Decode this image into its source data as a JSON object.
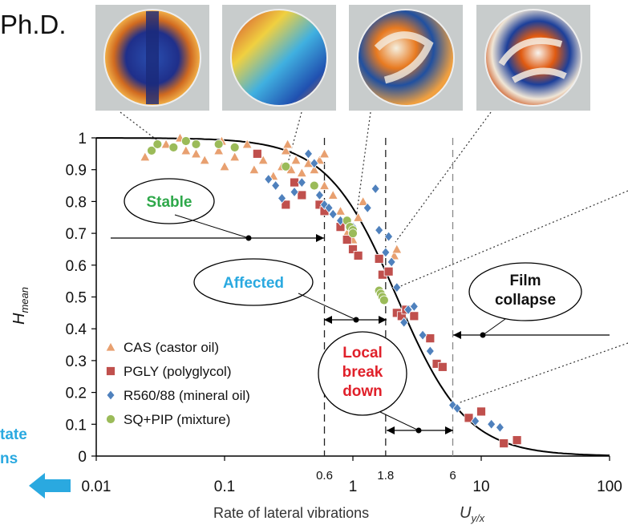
{
  "header_text": "Ph.D.",
  "chart_data": {
    "type": "scatter",
    "x_scale": "log",
    "xlim": [
      0.01,
      100
    ],
    "ylim": [
      0,
      1
    ],
    "grid": false,
    "x_ticks": [
      "0.01",
      "0.1",
      "1",
      "10",
      "100"
    ],
    "x_minor_ticks": [
      "0.6",
      "1.8",
      "6"
    ],
    "y_ticks": [
      "0",
      "0.1",
      "0.2",
      "0.3",
      "0.4",
      "0.5",
      "0.6",
      "0.7",
      "0.8",
      "0.9",
      "1"
    ],
    "xlabel": "Rate of lateral vibrations",
    "xlabel_symbol": "U",
    "xlabel_sub": "y/x",
    "ylabel": "H",
    "ylabel_sub": "mean",
    "thresholds": [
      0.6,
      1.8,
      6
    ],
    "legend_position": "bottom-left",
    "series": [
      {
        "name": "CAS (castor oil)",
        "marker": "triangle",
        "color": "#e8a070",
        "points": [
          [
            0.024,
            0.94
          ],
          [
            0.035,
            0.98
          ],
          [
            0.045,
            1.0
          ],
          [
            0.05,
            0.96
          ],
          [
            0.06,
            0.95
          ],
          [
            0.07,
            0.93
          ],
          [
            0.09,
            0.96
          ],
          [
            0.095,
            0.99
          ],
          [
            0.1,
            0.91
          ],
          [
            0.12,
            0.94
          ],
          [
            0.15,
            0.98
          ],
          [
            0.17,
            0.9
          ],
          [
            0.2,
            0.93
          ],
          [
            0.24,
            0.88
          ],
          [
            0.28,
            0.91
          ],
          [
            0.3,
            0.96
          ],
          [
            0.31,
            0.98
          ],
          [
            0.33,
            0.9
          ],
          [
            0.36,
            0.93
          ],
          [
            0.4,
            0.89
          ],
          [
            0.45,
            0.92
          ],
          [
            0.5,
            0.9
          ],
          [
            0.55,
            0.93
          ],
          [
            0.6,
            0.95
          ],
          [
            0.6,
            0.85
          ],
          [
            0.7,
            0.82
          ],
          [
            0.8,
            0.77
          ],
          [
            0.9,
            0.7
          ],
          [
            1.0,
            0.68
          ],
          [
            1.1,
            0.75
          ],
          [
            1.2,
            0.8
          ],
          [
            2.1,
            0.63
          ],
          [
            2.2,
            0.65
          ]
        ]
      },
      {
        "name": "PGLY (polyglycol)",
        "marker": "square",
        "color": "#c0504d",
        "points": [
          [
            0.18,
            0.95
          ],
          [
            0.3,
            0.79
          ],
          [
            0.35,
            0.86
          ],
          [
            0.4,
            0.82
          ],
          [
            0.55,
            0.79
          ],
          [
            0.6,
            0.77
          ],
          [
            0.8,
            0.72
          ],
          [
            0.9,
            0.68
          ],
          [
            1.0,
            0.65
          ],
          [
            1.1,
            0.63
          ],
          [
            1.6,
            0.62
          ],
          [
            1.7,
            0.57
          ],
          [
            1.9,
            0.58
          ],
          [
            2.2,
            0.45
          ],
          [
            2.4,
            0.44
          ],
          [
            2.6,
            0.46
          ],
          [
            3.0,
            0.44
          ],
          [
            4.0,
            0.37
          ],
          [
            4.5,
            0.29
          ],
          [
            5.0,
            0.28
          ],
          [
            8.0,
            0.12
          ],
          [
            10.0,
            0.14
          ],
          [
            15.0,
            0.04
          ],
          [
            19.0,
            0.05
          ]
        ]
      },
      {
        "name": "R560/88 (mineral oil)",
        "marker": "diamond",
        "color": "#4f81bd",
        "points": [
          [
            0.22,
            0.87
          ],
          [
            0.25,
            0.85
          ],
          [
            0.28,
            0.81
          ],
          [
            0.35,
            0.83
          ],
          [
            0.4,
            0.86
          ],
          [
            0.45,
            0.95
          ],
          [
            0.5,
            0.92
          ],
          [
            0.55,
            0.82
          ],
          [
            0.6,
            0.79
          ],
          [
            0.65,
            0.78
          ],
          [
            0.7,
            0.76
          ],
          [
            0.8,
            0.74
          ],
          [
            1.0,
            0.72
          ],
          [
            1.3,
            0.78
          ],
          [
            1.5,
            0.84
          ],
          [
            1.6,
            0.71
          ],
          [
            1.8,
            0.64
          ],
          [
            1.9,
            0.69
          ],
          [
            2.0,
            0.61
          ],
          [
            2.2,
            0.53
          ],
          [
            2.5,
            0.42
          ],
          [
            2.7,
            0.46
          ],
          [
            3.0,
            0.47
          ],
          [
            3.5,
            0.38
          ],
          [
            4.0,
            0.33
          ],
          [
            6.0,
            0.16
          ],
          [
            6.5,
            0.15
          ],
          [
            9.0,
            0.11
          ],
          [
            12.0,
            0.1
          ],
          [
            14.0,
            0.09
          ]
        ]
      },
      {
        "name": "SQ+PIP (mixture)",
        "marker": "circle",
        "color": "#9bbb59",
        "points": [
          [
            0.027,
            0.96
          ],
          [
            0.03,
            0.98
          ],
          [
            0.04,
            0.97
          ],
          [
            0.05,
            0.99
          ],
          [
            0.06,
            0.98
          ],
          [
            0.09,
            0.98
          ],
          [
            0.12,
            0.97
          ],
          [
            0.3,
            0.91
          ],
          [
            0.5,
            0.85
          ],
          [
            0.9,
            0.74
          ],
          [
            0.95,
            0.72
          ],
          [
            1.0,
            0.71
          ],
          [
            1.0,
            0.7
          ],
          [
            1.6,
            0.52
          ],
          [
            1.65,
            0.51
          ],
          [
            1.7,
            0.5
          ],
          [
            1.75,
            0.49
          ]
        ]
      }
    ],
    "fit_curve": true
  },
  "regions": [
    {
      "label": "Stable",
      "color": "#2ea84a"
    },
    {
      "label": "Affected",
      "color": "#2aa9e0"
    },
    {
      "label": "Local\nbreak\ndown",
      "color": "#e0202a"
    },
    {
      "label": "Film\ncollapse",
      "color": "#111111"
    }
  ],
  "left_cut_text": [
    "tate",
    "ns"
  ],
  "colors": {
    "accent_blue": "#2aa9e0",
    "fit_curve": "#000000"
  }
}
